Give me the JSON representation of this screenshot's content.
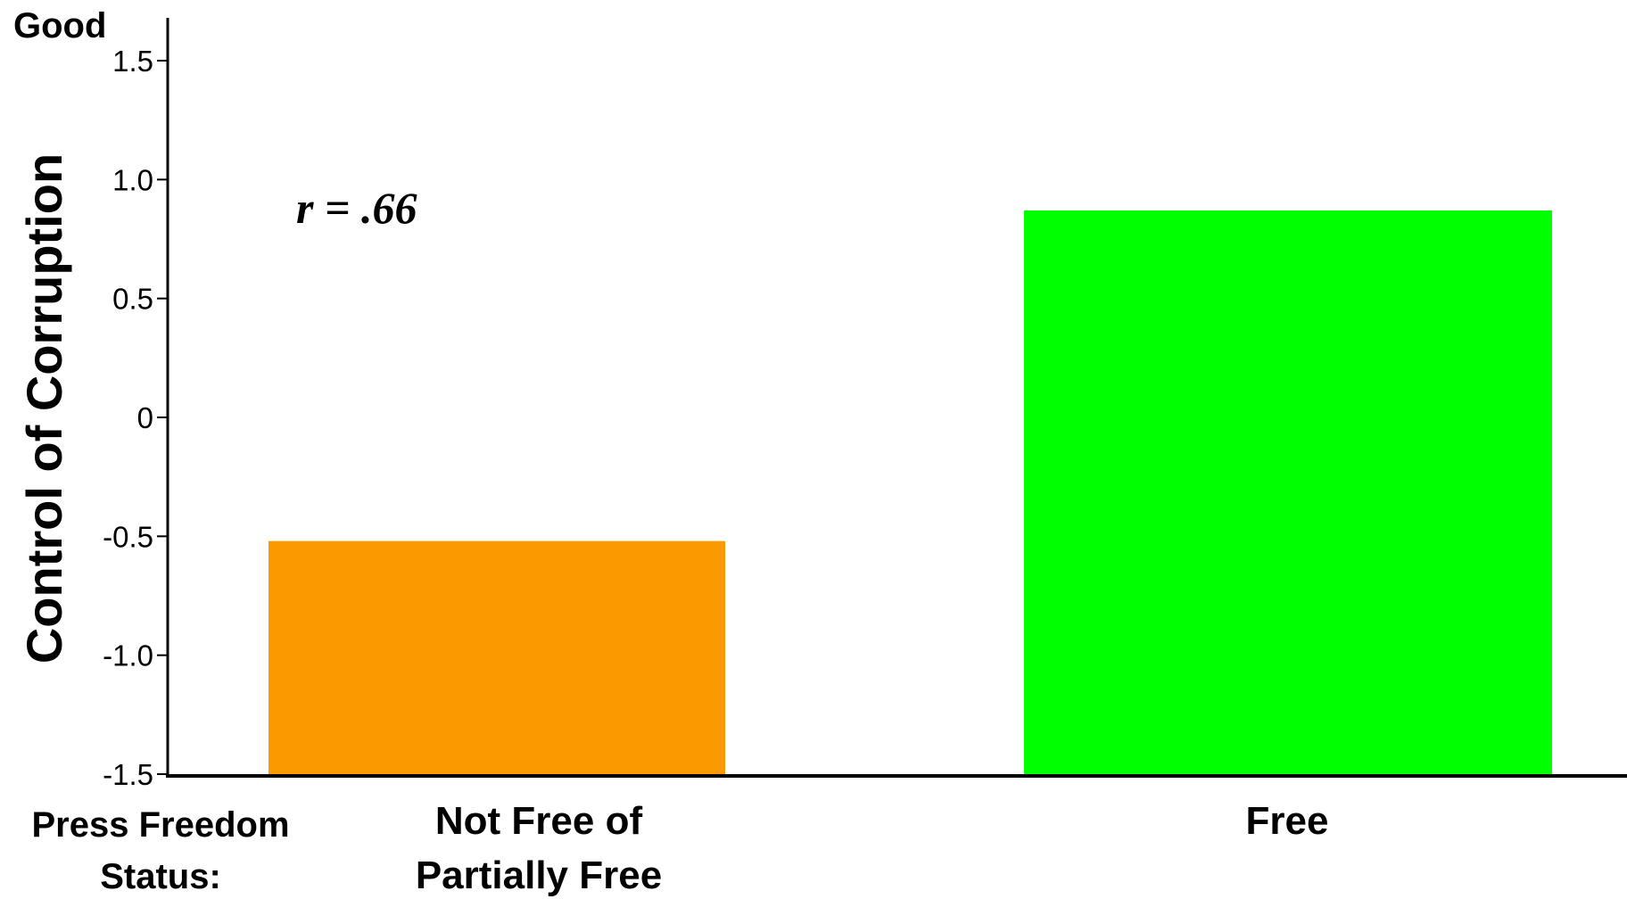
{
  "chart_data": {
    "type": "bar",
    "categories": [
      [
        "Not Free of",
        "Partially Free"
      ],
      [
        "Free"
      ]
    ],
    "values": [
      -0.52,
      0.87
    ],
    "bar_colors": [
      "#fa9a00",
      "#00ff00"
    ],
    "ylabel": "Control of Corruption",
    "ylabel_top": "Good",
    "xlabel": [
      "Press Freedom",
      "Status:"
    ],
    "yticks": [
      -1.5,
      -1.0,
      -0.5,
      0,
      0.5,
      1.0,
      1.5
    ],
    "ytick_labels": [
      "-1.5",
      "-1.0",
      "-0.5",
      "0",
      "0.5",
      "1.0",
      "1.5"
    ],
    "ylim": [
      -1.5,
      1.5
    ],
    "annotation": "r = .66",
    "baseline": -1.5,
    "grid": false,
    "legend": "none"
  }
}
